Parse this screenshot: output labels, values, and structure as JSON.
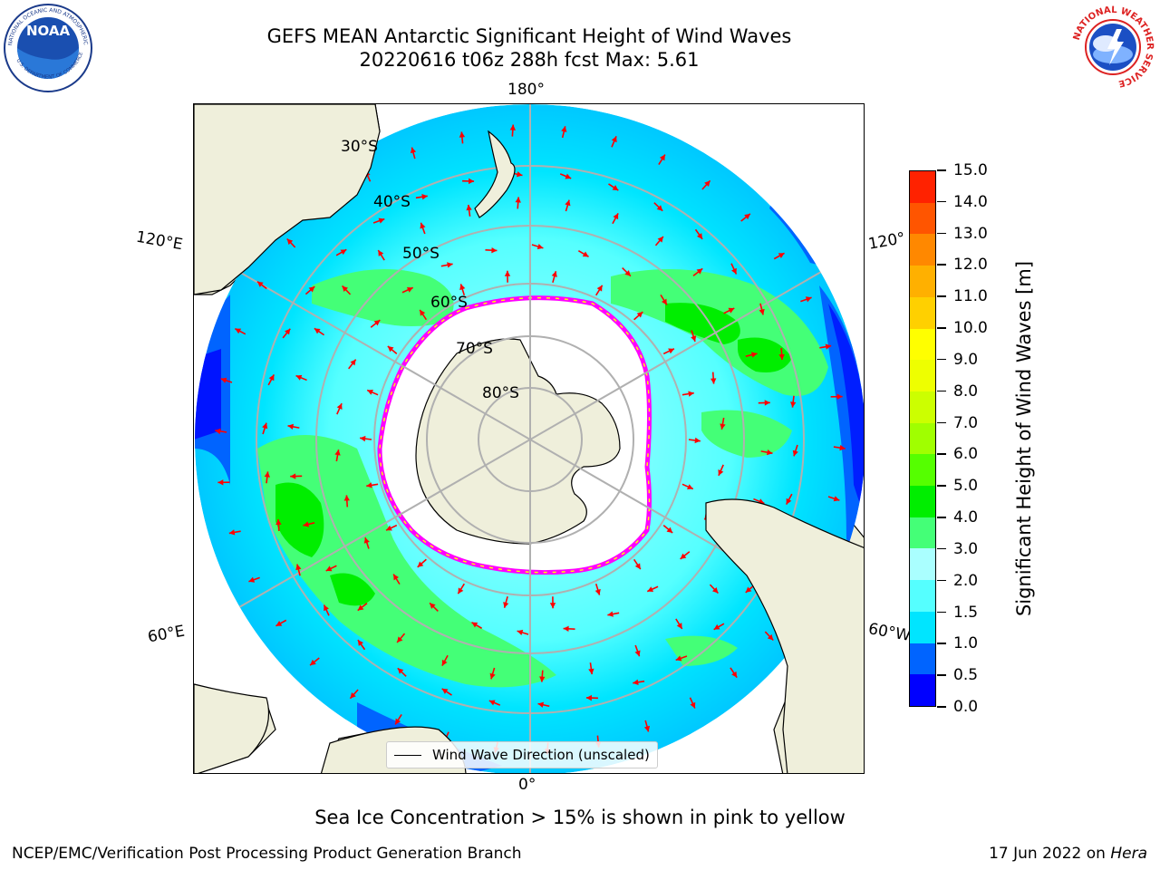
{
  "header": {
    "title_line1": "GEFS MEAN Antarctic Significant Height of Wind Waves",
    "title_line2": "20220616 t06z 288h fcst   Max: 5.61"
  },
  "logos": {
    "noaa": {
      "text": "NOAA",
      "ring_text": "NATIONAL OCEANIC AND ATMOSPHERIC ADMINISTRATION",
      "bottom_text": "U.S. DEPARTMENT OF COMMERCE"
    },
    "nws": {
      "ring_text": "NATIONAL WEATHER SERVICE"
    }
  },
  "map": {
    "projection": "south-polar-stereographic",
    "lon_labels": {
      "top": "180°",
      "bottom": "0°",
      "upper_left": "120°E",
      "lower_left": "60°E",
      "upper_right": "120°",
      "lower_right": "60°W"
    },
    "lat_labels": [
      "30°S",
      "40°S",
      "50°S",
      "60°S",
      "70°S",
      "80°S"
    ],
    "land_color": "#efefdb",
    "sea_ice_color": "#ffffff",
    "sea_ice_edge_colors": [
      "#ff00ff",
      "#ffff00"
    ],
    "legend_label": "Wind Wave Direction (unscaled)",
    "arrow_color": "#ff0000"
  },
  "colorbar": {
    "title": "Significant Height of Wind Waves [m]",
    "tick_labels": [
      "0.0",
      "0.5",
      "1.0",
      "1.5",
      "2.0",
      "3.0",
      "4.0",
      "5.0",
      "6.0",
      "7.0",
      "8.0",
      "9.0",
      "10.0",
      "11.0",
      "12.0",
      "13.0",
      "14.0",
      "15.0"
    ],
    "colors": [
      "#0000ff",
      "#0064ff",
      "#00e5ff",
      "#55ffff",
      "#aaffff",
      "#44ff77",
      "#00ee00",
      "#55ff00",
      "#a0ff00",
      "#ccff00",
      "#eeff00",
      "#ffff00",
      "#ffd000",
      "#ffb000",
      "#ff8800",
      "#ff5500",
      "#ff2200"
    ]
  },
  "note": "Sea Ice Concentration > 15% is shown in pink to yellow",
  "footer": {
    "left": "NCEP/EMC/Verification Post Processing Product Generation Branch",
    "right_prefix": "17 Jun 2022 on ",
    "right_machine": "Hera"
  }
}
